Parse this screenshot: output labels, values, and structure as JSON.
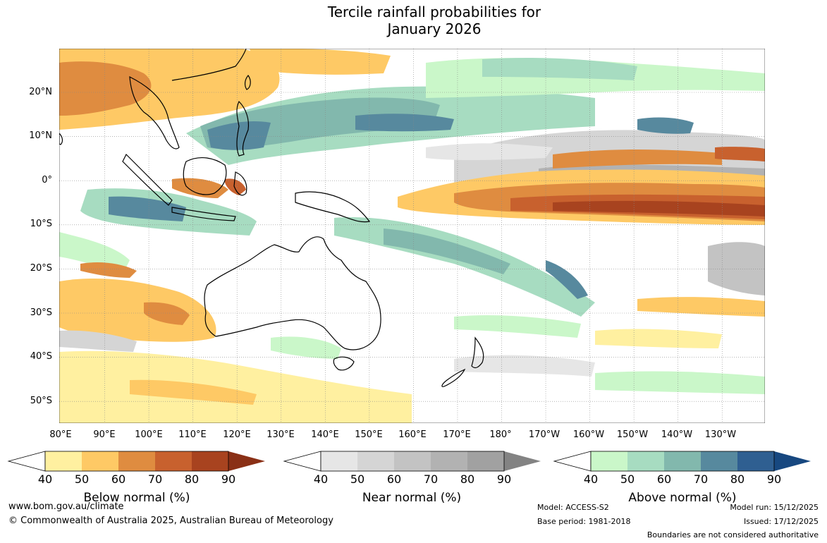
{
  "title_line1": "Tercile rainfall probabilities for",
  "title_line2": "January 2026",
  "lat_labels": [
    "20°N",
    "10°N",
    "0°",
    "10°S",
    "20°S",
    "30°S",
    "40°S",
    "50°S"
  ],
  "lon_labels": [
    "80°E",
    "90°E",
    "100°E",
    "110°E",
    "120°E",
    "130°E",
    "140°E",
    "150°E",
    "160°E",
    "170°E",
    "180°",
    "170°W",
    "160°W",
    "150°W",
    "140°W",
    "130°W"
  ],
  "legends": [
    {
      "label": "Below normal (%)",
      "ticks": [
        "40",
        "50",
        "60",
        "70",
        "80",
        "90"
      ],
      "colors": [
        "#fff0a0",
        "#fec965",
        "#df8c40",
        "#c8612e",
        "#a8431f",
        "#8a3016"
      ]
    },
    {
      "label": "Near normal (%)",
      "ticks": [
        "40",
        "50",
        "60",
        "70",
        "80",
        "90"
      ],
      "colors": [
        "#e6e6e6",
        "#d5d5d5",
        "#c3c3c3",
        "#b2b2b2",
        "#a1a1a1",
        "#838383"
      ]
    },
    {
      "label": "Above normal (%)",
      "ticks": [
        "40",
        "50",
        "60",
        "70",
        "80",
        "90"
      ],
      "colors": [
        "#caf7c9",
        "#a7dcc1",
        "#82b8ad",
        "#57899e",
        "#2f5f91",
        "#174880"
      ]
    }
  ],
  "footer": {
    "url": "www.bom.gov.au/climate",
    "copyright": "© Commonwealth of Australia 2025, Australian Bureau of Meteorology",
    "model": "Model: ACCESS-S2",
    "base_period": "Base period: 1981-2018",
    "model_run": "Model run: 15/12/2025",
    "issued": "Issued: 17/12/2025",
    "disclaimer": "Boundaries are not considered authoritative"
  }
}
